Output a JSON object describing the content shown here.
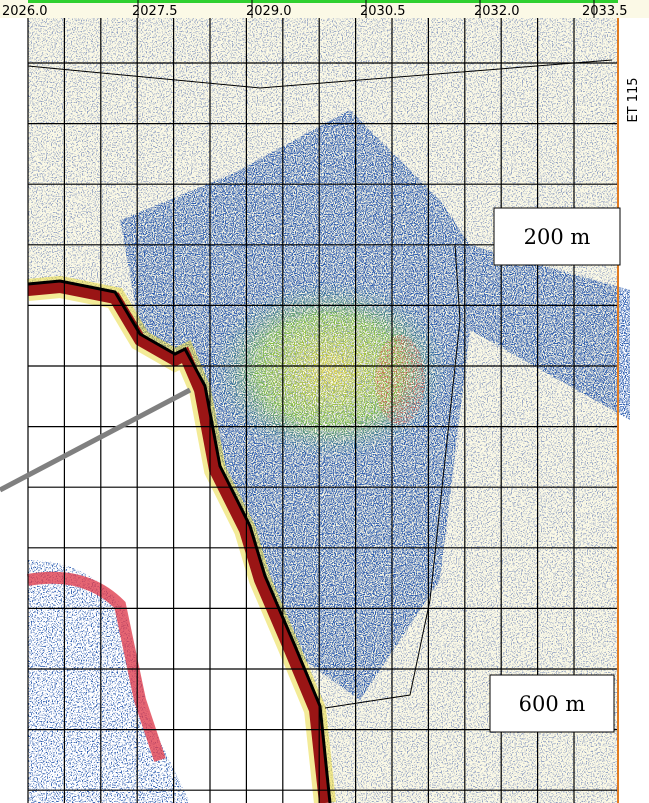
{
  "axis": {
    "labels": [
      "2026.0",
      "2027.5",
      "2029.0",
      "2030.5",
      "2032.0",
      "2033.5"
    ]
  },
  "transect": "ET 115",
  "callouts": [
    "200 m",
    "600 m"
  ]
}
